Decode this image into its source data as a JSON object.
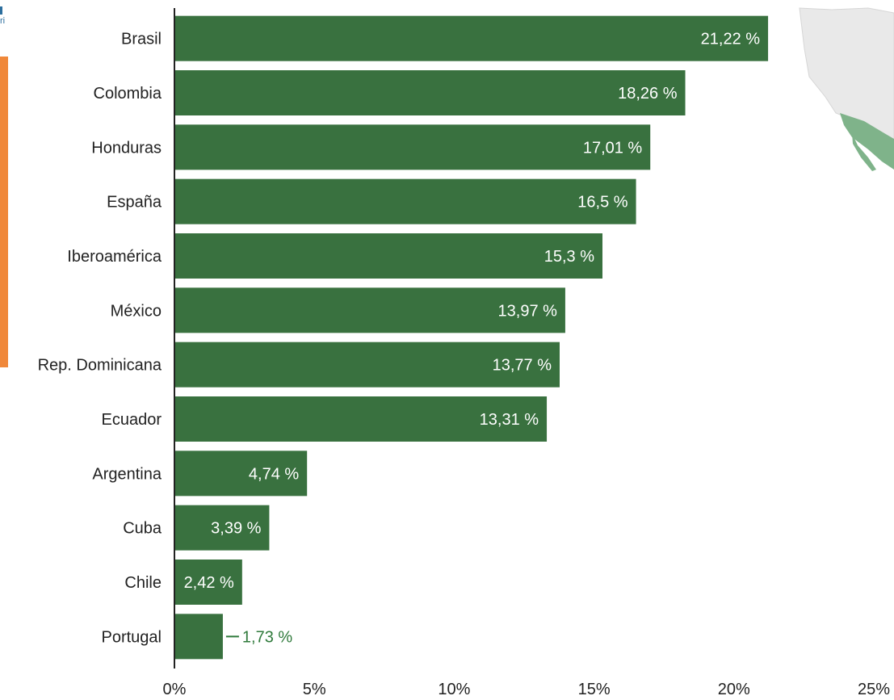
{
  "page": {
    "corner_text": "ri"
  },
  "chart_data": {
    "type": "bar",
    "orientation": "horizontal",
    "categories": [
      "Brasil",
      "Colombia",
      "Honduras",
      "España",
      "Iberoamérica",
      "México",
      "Rep. Dominicana",
      "Ecuador",
      "Argentina",
      "Cuba",
      "Chile",
      "Portugal"
    ],
    "values": [
      21.22,
      18.26,
      17.01,
      16.5,
      15.3,
      13.97,
      13.77,
      13.31,
      4.74,
      3.39,
      2.42,
      1.73
    ],
    "value_labels": [
      "21,22 %",
      "18,26 %",
      "17,01 %",
      "16,5 %",
      "15,3 %",
      "13,97 %",
      "13,77 %",
      "13,31 %",
      "4,74 %",
      "3,39 %",
      "2,42 %",
      "1,73 %"
    ],
    "xlim": [
      0,
      25
    ],
    "x_ticks": [
      0,
      5,
      10,
      15,
      20,
      25
    ],
    "x_tick_labels": [
      "0%",
      "5%",
      "10%",
      "15%",
      "20%",
      "25%"
    ],
    "title": "",
    "xlabel": "",
    "ylabel": "",
    "grid": false,
    "bar_color": "#39713f",
    "label_color_inside": "#ffffff",
    "label_color_outside": "#2f7a3b"
  }
}
